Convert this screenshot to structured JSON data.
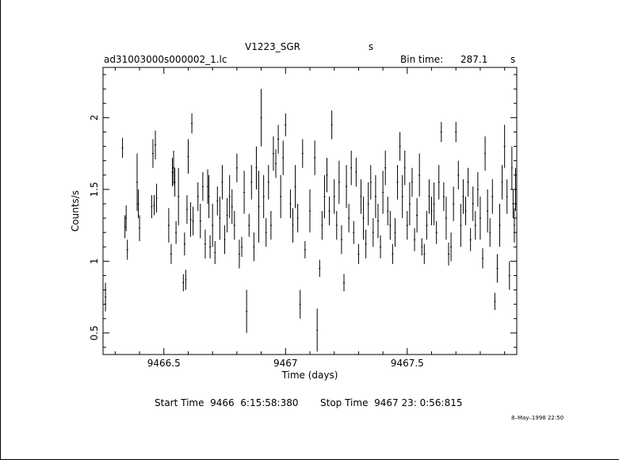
{
  "chart_data": {
    "type": "scatter",
    "title": "V1223_SGR",
    "title_suffix": "s",
    "file_name": "ad31003000s000002_1.lc",
    "bin_time_label": "Bin time:",
    "bin_time_value": "287.1",
    "bin_time_unit": "s",
    "xlabel": "Time (days)",
    "ylabel": "Counts/s",
    "xlim": [
      9466.25,
      9467.95
    ],
    "ylim": [
      0.35,
      2.35
    ],
    "x_ticks": [
      {
        "value": 9466.5,
        "label": "9466.5"
      },
      {
        "value": 9467,
        "label": "9467"
      },
      {
        "value": 9467.5,
        "label": "9467.5"
      }
    ],
    "y_ticks": [
      {
        "value": 0.5,
        "label": "0.5"
      },
      {
        "value": 1,
        "label": "1"
      },
      {
        "value": 1.5,
        "label": "1.5"
      },
      {
        "value": 2,
        "label": "2"
      }
    ],
    "start_time": "Start Time  9466  6:15:58:380",
    "stop_time": "Stop Time  9467 23: 0:56:815",
    "date_stamp": "8–May–1998 22:50",
    "series": [
      {
        "error_style": "vertical bars",
        "points": [
          [
            9466.26,
            0.75,
            0.1
          ],
          [
            9466.33,
            1.79,
            0.07
          ],
          [
            9466.34,
            1.24,
            0.08
          ],
          [
            9466.345,
            1.3,
            0.09
          ],
          [
            9466.35,
            1.08,
            0.07
          ],
          [
            9466.39,
            1.55,
            0.2
          ],
          [
            9466.395,
            1.4,
            0.1
          ],
          [
            9466.4,
            1.23,
            0.09
          ],
          [
            9466.45,
            1.38,
            0.08
          ],
          [
            9466.455,
            1.75,
            0.1
          ],
          [
            9466.46,
            1.39,
            0.07
          ],
          [
            9466.465,
            1.81,
            0.1
          ],
          [
            9466.47,
            1.44,
            0.1
          ],
          [
            9466.52,
            1.25,
            0.12
          ],
          [
            9466.53,
            1.05,
            0.07
          ],
          [
            9466.535,
            1.62,
            0.1
          ],
          [
            9466.54,
            1.65,
            0.12
          ],
          [
            9466.545,
            1.55,
            0.1
          ],
          [
            9466.55,
            1.2,
            0.08
          ],
          [
            9466.56,
            1.45,
            0.2
          ],
          [
            9466.58,
            0.85,
            0.06
          ],
          [
            9466.585,
            1.12,
            0.08
          ],
          [
            9466.59,
            0.87,
            0.07
          ],
          [
            9466.595,
            1.36,
            0.1
          ],
          [
            9466.6,
            1.73,
            0.12
          ],
          [
            9466.61,
            1.29,
            0.12
          ],
          [
            9466.615,
            1.96,
            0.07
          ],
          [
            9466.62,
            1.28,
            0.1
          ],
          [
            9466.64,
            1.45,
            0.1
          ],
          [
            9466.65,
            1.28,
            0.12
          ],
          [
            9466.66,
            1.52,
            0.1
          ],
          [
            9466.67,
            1.12,
            0.1
          ],
          [
            9466.68,
            1.52,
            0.12
          ],
          [
            9466.685,
            1.45,
            0.15
          ],
          [
            9466.69,
            1.1,
            0.08
          ],
          [
            9466.7,
            1.25,
            0.15
          ],
          [
            9466.71,
            1.06,
            0.08
          ],
          [
            9466.72,
            1.42,
            0.1
          ],
          [
            9466.73,
            1.3,
            0.15
          ],
          [
            9466.74,
            1.55,
            0.12
          ],
          [
            9466.75,
            1.15,
            0.1
          ],
          [
            9466.76,
            1.32,
            0.12
          ],
          [
            9466.77,
            1.45,
            0.15
          ],
          [
            9466.78,
            1.38,
            0.12
          ],
          [
            9466.79,
            1.25,
            0.1
          ],
          [
            9466.8,
            1.65,
            0.1
          ],
          [
            9466.81,
            1.05,
            0.1
          ],
          [
            9466.82,
            1.1,
            0.07
          ],
          [
            9466.83,
            1.48,
            0.15
          ],
          [
            9466.84,
            0.65,
            0.15
          ],
          [
            9466.85,
            1.25,
            0.08
          ],
          [
            9466.86,
            1.55,
            0.12
          ],
          [
            9466.87,
            1.1,
            0.1
          ],
          [
            9466.88,
            1.65,
            0.15
          ],
          [
            9466.89,
            1.38,
            0.25
          ],
          [
            9466.9,
            2.0,
            0.2
          ],
          [
            9466.91,
            1.45,
            0.15
          ],
          [
            9466.92,
            1.2,
            0.1
          ],
          [
            9466.93,
            1.55,
            0.12
          ],
          [
            9466.94,
            1.25,
            0.1
          ],
          [
            9466.95,
            1.75,
            0.12
          ],
          [
            9466.96,
            1.68,
            0.1
          ],
          [
            9466.97,
            1.85,
            0.1
          ],
          [
            9466.98,
            1.45,
            0.15
          ],
          [
            9466.99,
            1.72,
            0.12
          ],
          [
            9467.0,
            1.95,
            0.08
          ],
          [
            9467.02,
            1.4,
            0.1
          ],
          [
            9467.03,
            1.25,
            0.12
          ],
          [
            9467.04,
            1.52,
            0.15
          ],
          [
            9467.05,
            1.3,
            0.1
          ],
          [
            9467.06,
            0.7,
            0.1
          ],
          [
            9467.07,
            1.75,
            0.1
          ],
          [
            9467.08,
            1.08,
            0.06
          ],
          [
            9467.1,
            1.35,
            0.15
          ],
          [
            9467.12,
            1.72,
            0.12
          ],
          [
            9467.13,
            0.52,
            0.15
          ],
          [
            9467.14,
            0.95,
            0.06
          ],
          [
            9467.15,
            1.25,
            0.1
          ],
          [
            9467.16,
            1.45,
            0.15
          ],
          [
            9467.17,
            1.6,
            0.12
          ],
          [
            9467.18,
            1.35,
            0.1
          ],
          [
            9467.19,
            1.95,
            0.1
          ],
          [
            9467.2,
            1.45,
            0.12
          ],
          [
            9467.21,
            1.25,
            0.1
          ],
          [
            9467.22,
            1.55,
            0.15
          ],
          [
            9467.23,
            1.15,
            0.1
          ],
          [
            9467.24,
            0.85,
            0.06
          ],
          [
            9467.25,
            1.52,
            0.15
          ],
          [
            9467.26,
            1.3,
            0.1
          ],
          [
            9467.27,
            1.65,
            0.12
          ],
          [
            9467.28,
            1.2,
            0.08
          ],
          [
            9467.29,
            1.62,
            0.1
          ],
          [
            9467.3,
            1.05,
            0.07
          ],
          [
            9467.31,
            1.45,
            0.12
          ],
          [
            9467.32,
            1.3,
            0.15
          ],
          [
            9467.33,
            1.12,
            0.1
          ],
          [
            9467.34,
            1.4,
            0.15
          ],
          [
            9467.35,
            1.55,
            0.12
          ],
          [
            9467.36,
            1.2,
            0.1
          ],
          [
            9467.37,
            1.45,
            0.15
          ],
          [
            9467.38,
            1.28,
            0.12
          ],
          [
            9467.39,
            1.1,
            0.08
          ],
          [
            9467.4,
            1.48,
            0.15
          ],
          [
            9467.41,
            1.65,
            0.12
          ],
          [
            9467.42,
            1.35,
            0.1
          ],
          [
            9467.43,
            1.25,
            0.1
          ],
          [
            9467.44,
            1.05,
            0.07
          ],
          [
            9467.45,
            1.2,
            0.1
          ],
          [
            9467.46,
            1.55,
            0.12
          ],
          [
            9467.47,
            1.8,
            0.1
          ],
          [
            9467.48,
            1.45,
            0.15
          ],
          [
            9467.49,
            1.65,
            0.12
          ],
          [
            9467.5,
            1.25,
            0.1
          ],
          [
            9467.51,
            1.4,
            0.15
          ],
          [
            9467.52,
            1.55,
            0.1
          ],
          [
            9467.53,
            1.15,
            0.08
          ],
          [
            9467.54,
            1.32,
            0.12
          ],
          [
            9467.55,
            1.6,
            0.15
          ],
          [
            9467.56,
            1.1,
            0.06
          ],
          [
            9467.57,
            1.05,
            0.07
          ],
          [
            9467.58,
            1.25,
            0.1
          ],
          [
            9467.59,
            1.45,
            0.12
          ],
          [
            9467.6,
            1.35,
            0.1
          ],
          [
            9467.61,
            1.4,
            0.15
          ],
          [
            9467.62,
            1.2,
            0.08
          ],
          [
            9467.63,
            1.55,
            0.12
          ],
          [
            9467.64,
            1.9,
            0.07
          ],
          [
            9467.65,
            1.45,
            0.1
          ],
          [
            9467.66,
            1.3,
            0.15
          ],
          [
            9467.67,
            1.05,
            0.08
          ],
          [
            9467.68,
            1.1,
            0.1
          ],
          [
            9467.69,
            1.4,
            0.12
          ],
          [
            9467.7,
            1.9,
            0.07
          ],
          [
            9467.71,
            1.6,
            0.1
          ],
          [
            9467.72,
            1.25,
            0.15
          ],
          [
            9467.73,
            1.45,
            0.12
          ],
          [
            9467.74,
            1.35,
            0.1
          ],
          [
            9467.75,
            1.55,
            0.1
          ],
          [
            9467.76,
            1.15,
            0.08
          ],
          [
            9467.77,
            1.4,
            0.12
          ],
          [
            9467.78,
            1.25,
            0.1
          ],
          [
            9467.79,
            1.5,
            0.12
          ],
          [
            9467.8,
            1.3,
            0.15
          ],
          [
            9467.81,
            1.02,
            0.07
          ],
          [
            9467.82,
            1.75,
            0.12
          ],
          [
            9467.83,
            1.35,
            0.15
          ],
          [
            9467.84,
            1.2,
            0.1
          ],
          [
            9467.85,
            1.45,
            0.12
          ],
          [
            9467.86,
            0.72,
            0.06
          ],
          [
            9467.87,
            0.95,
            0.1
          ],
          [
            9467.88,
            1.25,
            0.15
          ],
          [
            9467.89,
            1.55,
            0.12
          ],
          [
            9467.9,
            1.8,
            0.15
          ],
          [
            9467.91,
            1.45,
            0.12
          ],
          [
            9467.92,
            0.9,
            0.1
          ],
          [
            9467.93,
            1.65,
            0.15
          ],
          [
            9467.935,
            1.4,
            0.1
          ],
          [
            9467.94,
            1.25,
            0.12
          ],
          [
            9467.945,
            1.5,
            0.15
          ]
        ]
      }
    ]
  }
}
